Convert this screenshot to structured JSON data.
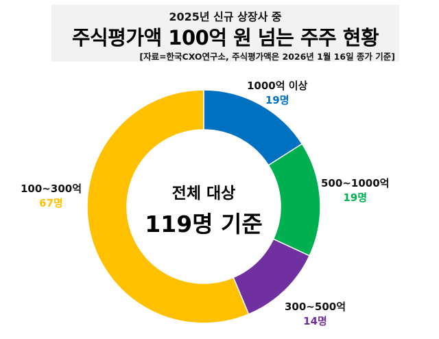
{
  "header": {
    "subtitle": "2025년 신규 상장사 중",
    "title": "주식평가액 100억 원 넘는 주주 현황",
    "source": "[자료=한국CXO연구소, 주식평가액은 2026년 1월 16일 종가 기준]"
  },
  "chart_data": {
    "type": "pie",
    "donut": true,
    "start": "top",
    "direction": "clockwise",
    "center_text": {
      "line1": "전체 대상",
      "line2": "119명 기준"
    },
    "slices": [
      {
        "label": "1000억 이상",
        "value": 19,
        "value_label": "19명",
        "color": "#0070C0"
      },
      {
        "label": "500~1000억",
        "value": 19,
        "value_label": "19명",
        "color": "#00B050"
      },
      {
        "label": "300~500억",
        "value": 14,
        "value_label": "14명",
        "color": "#7030A0"
      },
      {
        "label": "100~300억",
        "value": 67,
        "value_label": "67명",
        "color": "#FFC000"
      }
    ]
  }
}
